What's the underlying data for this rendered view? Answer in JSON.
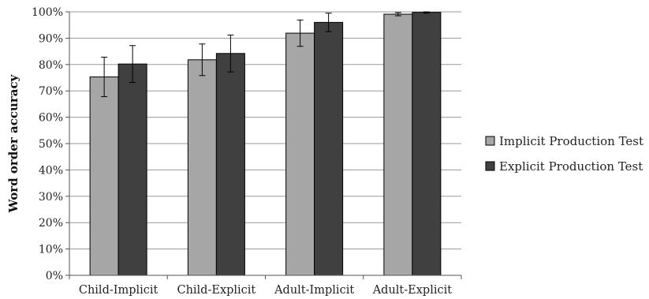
{
  "chart_data": {
    "type": "bar",
    "categories": [
      "Child-Implicit",
      "Child-Explicit",
      "Adult-Implicit",
      "Adult-Explicit"
    ],
    "series": [
      {
        "name": "Implicit Production Test",
        "values": [
          75.3,
          81.8,
          91.9,
          99.1
        ],
        "error": [
          7.5,
          6.0,
          5.0,
          0.6
        ],
        "color": "#a6a6a6"
      },
      {
        "name": "Explicit Production Test",
        "values": [
          80.2,
          84.2,
          96.0,
          99.8
        ],
        "error": [
          7.0,
          7.0,
          3.5,
          0.3
        ],
        "color": "#404040"
      }
    ],
    "title": "",
    "xlabel": "",
    "ylabel": "Word order accuracy",
    "ylim": [
      0,
      100
    ],
    "yticks": [
      0,
      10,
      20,
      30,
      40,
      50,
      60,
      70,
      80,
      90,
      100
    ],
    "ytick_suffix": "%",
    "grid": true,
    "legend_position": "right",
    "error_bars": true
  }
}
